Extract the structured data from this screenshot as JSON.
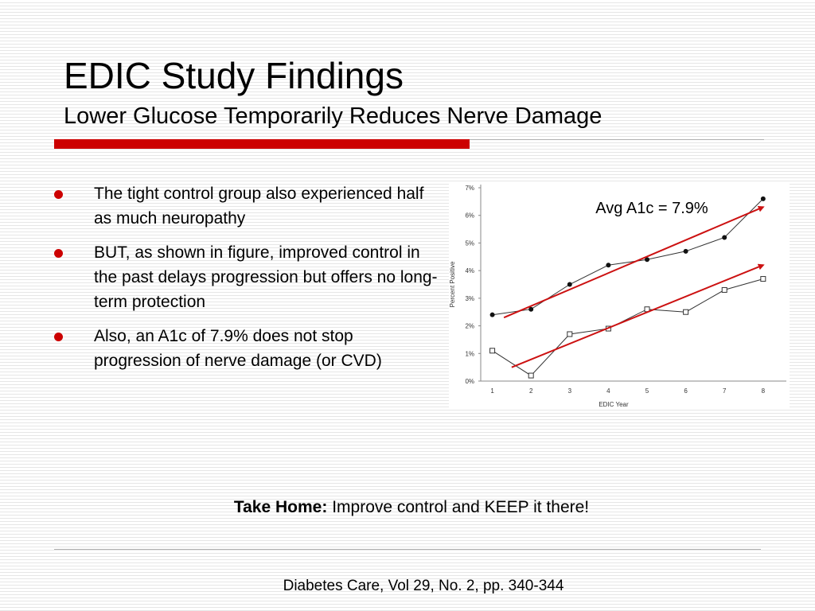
{
  "slide": {
    "title": "EDIC Study Findings",
    "subtitle": "Lower Glucose Temporarily Reduces Nerve Damage",
    "bullets": [
      "The tight control group also experienced half as much neuropathy",
      "BUT, as shown in figure, improved control in the past delays progression but offers no long-term protection",
      "Also, an A1c of 7.9% does not stop progression of nerve damage (or CVD)"
    ],
    "takehome_bold": "Take Home:",
    "takehome_text": "Improve control and KEEP it there!",
    "citation": "Diabetes Care, Vol 29, No. 2, pp. 340-344"
  },
  "colors": {
    "accent_red": "#cc0000",
    "trend_arrow": "#cc1111",
    "series_line": "#333333"
  },
  "chart_data": {
    "type": "line",
    "title": "",
    "xlabel": "EDIC Year",
    "ylabel": "Percent Positive",
    "x": [
      1,
      2,
      3,
      4,
      5,
      6,
      7,
      8
    ],
    "ylim": [
      0,
      7
    ],
    "yticks": [
      "0%",
      "1%",
      "2%",
      "3%",
      "4%",
      "5%",
      "6%",
      "7%"
    ],
    "grid": false,
    "series": [
      {
        "marker": "filled-circle",
        "values": [
          2.4,
          2.6,
          3.5,
          4.2,
          4.4,
          4.7,
          5.2,
          6.6
        ]
      },
      {
        "marker": "open-square",
        "values": [
          1.1,
          0.2,
          1.7,
          1.9,
          2.6,
          2.5,
          3.3,
          3.7
        ]
      }
    ],
    "trend_arrows": [
      {
        "from": [
          1.3,
          2.3
        ],
        "to": [
          8.0,
          6.3
        ]
      },
      {
        "from": [
          1.5,
          0.5
        ],
        "to": [
          8.0,
          4.2
        ]
      }
    ],
    "annotation": "Avg A1c = 7.9%"
  }
}
